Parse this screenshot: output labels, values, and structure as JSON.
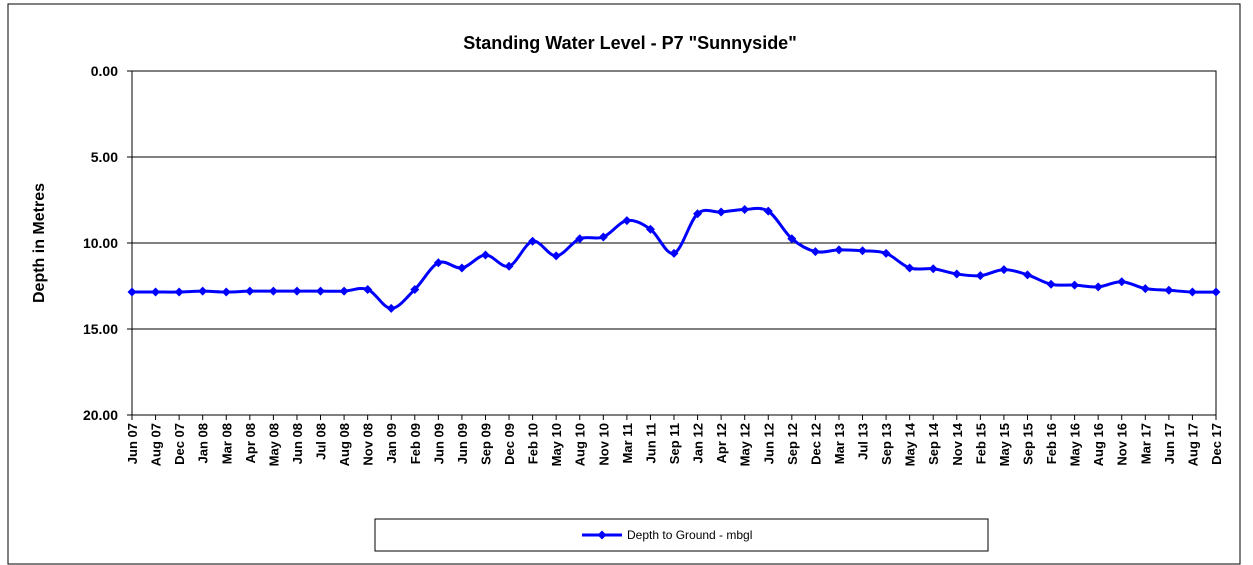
{
  "chart_data": {
    "type": "line",
    "title": "Standing Water Level - P7 \"Sunnyside\"",
    "y_label": "Depth in Metres",
    "categories": [
      "Jun 07",
      "Aug 07",
      "Dec 07",
      "Jan 08",
      "Mar 08",
      "Apr 08",
      "May 08",
      "Jun 08",
      "Jul 08",
      "Aug 08",
      "Nov 08",
      "Jan 09",
      "Feb 09",
      "Jun 09",
      "Jun 09",
      "Sep 09",
      "Dec 09",
      "Feb 10",
      "May 10",
      "Aug 10",
      "Nov 10",
      "Mar 11",
      "Jun 11",
      "Sep 11",
      "Jan 12",
      "Apr 12",
      "May 12",
      "Jun 12",
      "Sep 12",
      "Dec 12",
      "Mar 13",
      "Jul 13",
      "Sep 13",
      "May 14",
      "Sep 14",
      "Nov 14",
      "Feb 15",
      "May 15",
      "Sep 15",
      "Feb 16",
      "May 16",
      "Aug 16",
      "Nov 16",
      "Mar 17",
      "Jun 17",
      "Aug 17",
      "Dec 17"
    ],
    "series": [
      {
        "name": "Depth to Ground - mbgl",
        "color": "#0000ff",
        "values": [
          12.85,
          12.85,
          12.85,
          12.8,
          12.85,
          12.8,
          12.8,
          12.8,
          12.8,
          12.8,
          12.7,
          13.8,
          12.7,
          11.15,
          11.45,
          10.7,
          11.35,
          9.9,
          10.75,
          9.75,
          9.65,
          8.7,
          9.2,
          10.6,
          8.3,
          8.2,
          8.05,
          8.15,
          9.75,
          10.5,
          10.4,
          10.45,
          10.6,
          11.45,
          11.5,
          11.8,
          11.9,
          11.55,
          11.85,
          12.4,
          12.45,
          12.55,
          12.25,
          12.65,
          12.75,
          12.85,
          12.85
        ]
      }
    ],
    "ylim": [
      0,
      20
    ],
    "y_inverted": true,
    "yticks": [
      {
        "value": 0,
        "label": "0.00"
      },
      {
        "value": 5,
        "label": "5.00"
      },
      {
        "value": 10,
        "label": "10.00"
      },
      {
        "value": 15,
        "label": "15.00"
      },
      {
        "value": 20,
        "label": "20.00"
      }
    ],
    "grid": true,
    "smooth": true,
    "legend": "bottom"
  }
}
